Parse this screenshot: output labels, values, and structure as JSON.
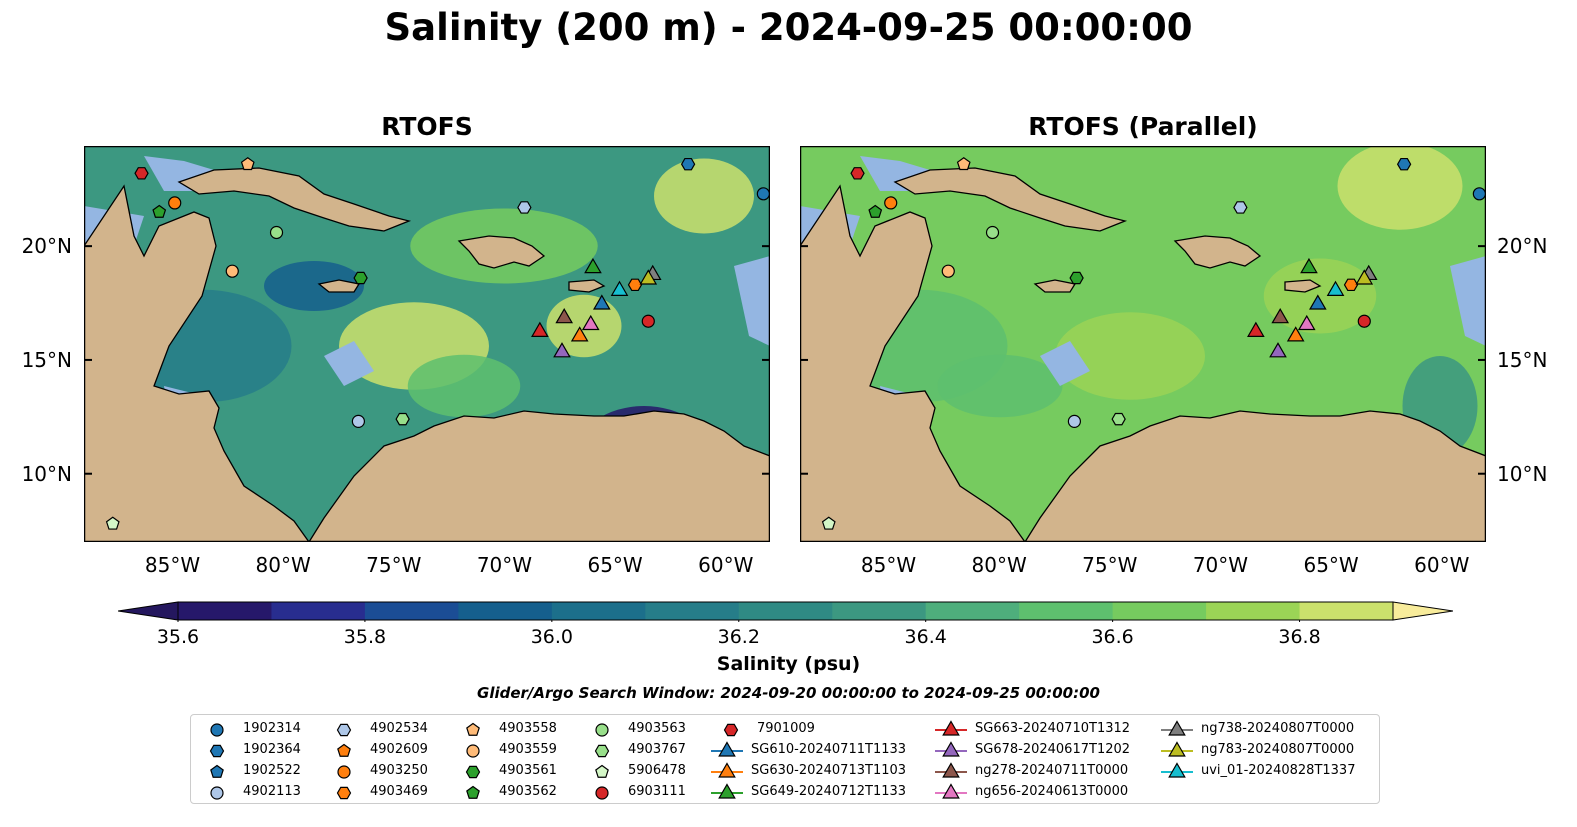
{
  "title": "Salinity (200 m) - 2024-09-25 00:00:00",
  "panels": [
    {
      "title": "RTOFS"
    },
    {
      "title": "RTOFS (Parallel)"
    }
  ],
  "map_extent": {
    "lon_min": -89,
    "lon_max": -58,
    "lat_min": 7,
    "lat_max": 24.4
  },
  "lon_ticks": [
    {
      "value": -85,
      "label": "85°W"
    },
    {
      "value": -80,
      "label": "80°W"
    },
    {
      "value": -75,
      "label": "75°W"
    },
    {
      "value": -70,
      "label": "70°W"
    },
    {
      "value": -65,
      "label": "65°W"
    },
    {
      "value": -60,
      "label": "60°W"
    }
  ],
  "lat_ticks": [
    {
      "value": 20,
      "label": "20°N"
    },
    {
      "value": 15,
      "label": "15°N"
    },
    {
      "value": 10,
      "label": "10°N"
    }
  ],
  "colors": {
    "land": "#d2b48c",
    "shelf": "#94b6e2",
    "coast": "#000000"
  },
  "colorbar": {
    "label": "Salinity (psu)",
    "min": 35.6,
    "max": 36.9,
    "step": 0.1,
    "extend": "both",
    "ticks": [
      {
        "value": 35.6,
        "label": "35.6"
      },
      {
        "value": 35.8,
        "label": "35.8"
      },
      {
        "value": 36.0,
        "label": "36.0"
      },
      {
        "value": 36.2,
        "label": "36.2"
      },
      {
        "value": 36.4,
        "label": "36.4"
      },
      {
        "value": 36.6,
        "label": "36.6"
      },
      {
        "value": 36.8,
        "label": "36.8"
      }
    ],
    "colors": [
      "#26186a",
      "#282d8f",
      "#1b4d95",
      "#155f8d",
      "#1c6f8b",
      "#267d89",
      "#2f8a84",
      "#3c9881",
      "#4eae7c",
      "#5ec06e",
      "#76cb5f",
      "#9bd456",
      "#cbe16c"
    ],
    "under_color": "#24175e",
    "over_color": "#f8ec9b"
  },
  "search_window": "Glider/Argo Search Window: 2024-09-20 00:00:00 to 2024-09-25 00:00:00",
  "platforms": [
    {
      "name": "1902314",
      "marker": "circle",
      "color": "#1f77b4",
      "lon": -58.3,
      "lat": 22.3
    },
    {
      "name": "1902364",
      "marker": "hexagon",
      "color": "#1f77b4",
      "lon": -61.7,
      "lat": 23.6
    },
    {
      "name": "1902522",
      "marker": "pentagon",
      "color": "#1f77b4",
      "lon": null,
      "lat": null
    },
    {
      "name": "4902113",
      "marker": "circle",
      "color": "#aec7e8",
      "lon": -76.6,
      "lat": 12.3
    },
    {
      "name": "4902534",
      "marker": "hexagon",
      "color": "#aec7e8",
      "lon": -69.1,
      "lat": 21.7
    },
    {
      "name": "4902609",
      "marker": "pentagon",
      "color": "#ff7f0e",
      "lon": null,
      "lat": null
    },
    {
      "name": "4903250",
      "marker": "circle",
      "color": "#ff7f0e",
      "lon": -84.9,
      "lat": 21.9
    },
    {
      "name": "4903469",
      "marker": "hexagon",
      "color": "#ff7f0e",
      "lon": -64.1,
      "lat": 18.3
    },
    {
      "name": "4903558",
      "marker": "pentagon",
      "color": "#ffbb78",
      "lon": -81.6,
      "lat": 23.6
    },
    {
      "name": "4903559",
      "marker": "circle",
      "color": "#ffbb78",
      "lon": -82.3,
      "lat": 18.9
    },
    {
      "name": "4903561",
      "marker": "hexagon",
      "color": "#2ca02c",
      "lon": -76.5,
      "lat": 18.6
    },
    {
      "name": "4903562",
      "marker": "pentagon",
      "color": "#2ca02c",
      "lon": -85.6,
      "lat": 21.5
    },
    {
      "name": "4903563",
      "marker": "circle",
      "color": "#98df8a",
      "lon": -80.3,
      "lat": 20.6
    },
    {
      "name": "4903767",
      "marker": "hexagon",
      "color": "#98df8a",
      "lon": -74.6,
      "lat": 12.4
    },
    {
      "name": "5906478",
      "marker": "pentagon",
      "color": "#d4f7c7",
      "lon": -87.7,
      "lat": 7.8
    },
    {
      "name": "6903111",
      "marker": "circle",
      "color": "#d62728",
      "lon": -63.5,
      "lat": 16.7
    },
    {
      "name": "7901009",
      "marker": "hexagon",
      "color": "#d62728",
      "lon": -86.4,
      "lat": 23.2
    },
    {
      "name": "SG610-20240711T1133",
      "marker": "triangle",
      "color": "#1f77b4",
      "lon": -65.6,
      "lat": 17.5
    },
    {
      "name": "SG630-20240713T1103",
      "marker": "triangle",
      "color": "#ff7f0e",
      "lon": -66.6,
      "lat": 16.1
    },
    {
      "name": "SG649-20240712T1133",
      "marker": "triangle",
      "color": "#2ca02c",
      "lon": -66.0,
      "lat": 19.1
    },
    {
      "name": "SG663-20240710T1312",
      "marker": "triangle",
      "color": "#d62728",
      "lon": -68.4,
      "lat": 16.3
    },
    {
      "name": "SG678-20240617T1202",
      "marker": "triangle",
      "color": "#9467bd",
      "lon": -67.4,
      "lat": 15.4
    },
    {
      "name": "ng278-20240711T0000",
      "marker": "triangle",
      "color": "#8c564b",
      "lon": -67.3,
      "lat": 16.9
    },
    {
      "name": "ng656-20240613T0000",
      "marker": "triangle",
      "color": "#e377c2",
      "lon": -66.1,
      "lat": 16.6
    },
    {
      "name": "ng738-20240807T0000",
      "marker": "triangle",
      "color": "#7f7f7f",
      "lon": -63.3,
      "lat": 18.8
    },
    {
      "name": "ng783-20240807T0000",
      "marker": "triangle",
      "color": "#bcbd22",
      "lon": -63.5,
      "lat": 18.6
    },
    {
      "name": "uvi_01-20240828T1337",
      "marker": "triangle",
      "color": "#17becf",
      "lon": -64.8,
      "lat": 18.1
    }
  ]
}
